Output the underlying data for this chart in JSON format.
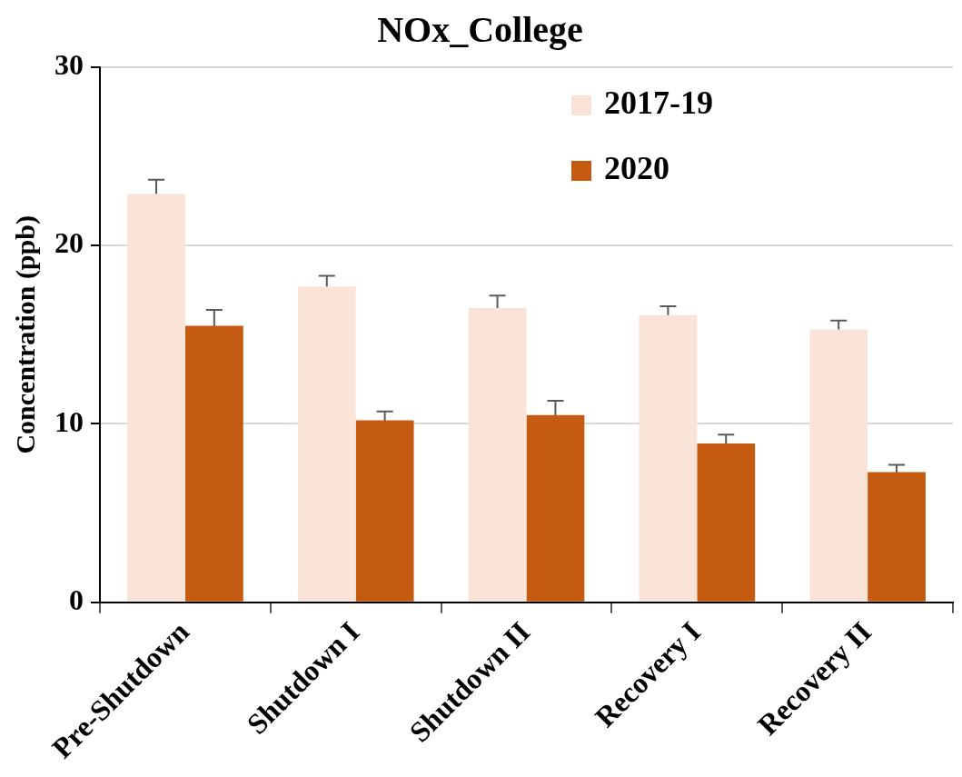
{
  "chart_data": {
    "type": "bar",
    "title": "NOx_College",
    "ylabel": "Concentration (ppb)",
    "categories": [
      "Pre-Shutdown",
      "Shutdown I",
      "Shutdown II",
      "Recovery I",
      "Recovery II"
    ],
    "series": [
      {
        "name": "2017-19",
        "color": "#fae4d8",
        "values": [
          22.9,
          17.7,
          16.5,
          16.1,
          15.3
        ],
        "errors": [
          0.8,
          0.6,
          0.7,
          0.5,
          0.5
        ]
      },
      {
        "name": "2020",
        "color": "#c55a11",
        "values": [
          15.5,
          10.2,
          10.5,
          8.9,
          7.3
        ],
        "errors": [
          0.9,
          0.5,
          0.8,
          0.5,
          0.4
        ]
      }
    ],
    "ylim": [
      0,
      30
    ],
    "yticks": [
      0,
      10,
      20,
      30
    ],
    "grid": "y",
    "legend": "top right"
  }
}
